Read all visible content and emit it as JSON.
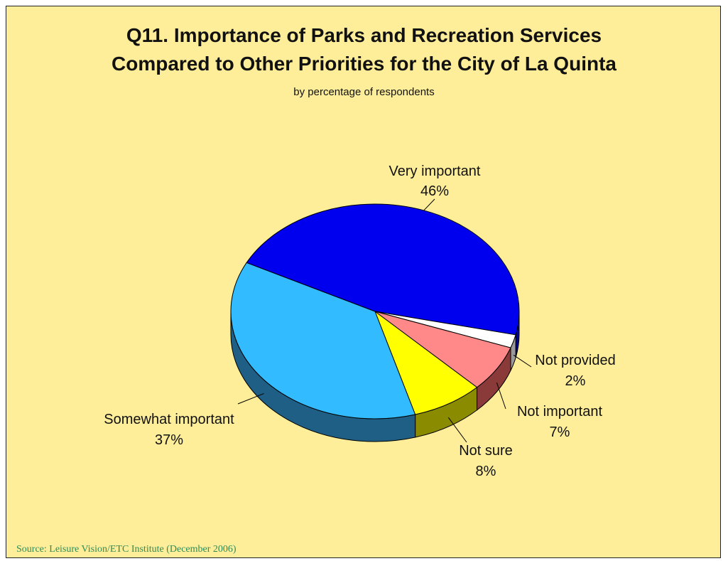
{
  "chart_data": {
    "type": "pie",
    "title_line1": "Q11. Importance of Parks and Recreation Services",
    "title_line2": "Compared to Other Priorities for the City of La Quinta",
    "subtitle": "by percentage of respondents",
    "slices": [
      {
        "label": "Very important",
        "value": 46,
        "value_label": "46%",
        "color": "#0000ee",
        "side_color": "#00009a"
      },
      {
        "label": "Not provided",
        "value": 2,
        "value_label": "2%",
        "color": "#ffffff",
        "side_color": "#9a9a9a"
      },
      {
        "label": "Not important",
        "value": 7,
        "value_label": "7%",
        "color": "#ff8888",
        "side_color": "#8b3a3a"
      },
      {
        "label": "Not sure",
        "value": 8,
        "value_label": "8%",
        "color": "#ffff00",
        "side_color": "#8b8b00"
      },
      {
        "label": "Somewhat important",
        "value": 37,
        "value_label": "37%",
        "color": "#33bbff",
        "side_color": "#1f5f85"
      }
    ],
    "legend": "none"
  },
  "source": "Source:  Leisure Vision/ETC Institute (December 2006)"
}
